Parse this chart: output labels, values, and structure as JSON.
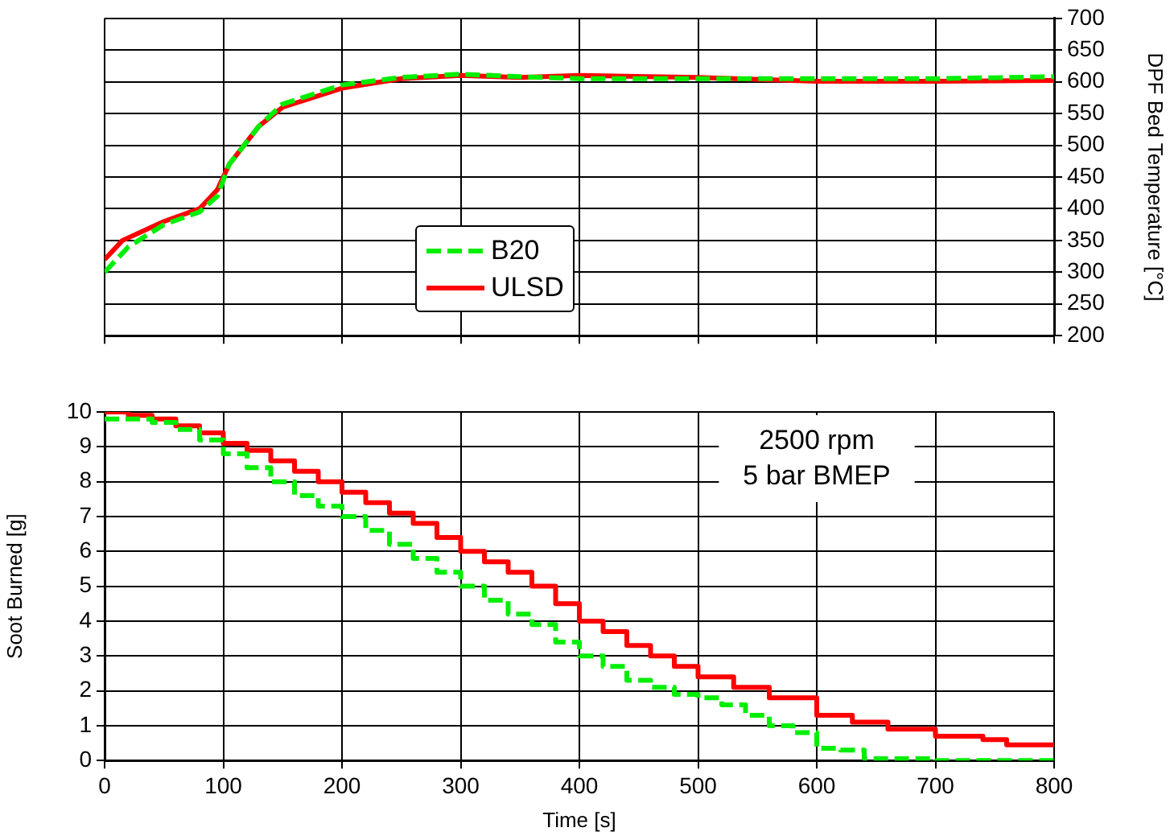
{
  "chart_data": [
    {
      "type": "line",
      "ylabel": "DPF Bed Temperature [°C]",
      "xlim": [
        0,
        800
      ],
      "xticks": [
        0,
        100,
        200,
        300,
        400,
        500,
        600,
        700,
        800
      ],
      "ylim": [
        200,
        700
      ],
      "yticks": [
        200,
        250,
        300,
        350,
        400,
        450,
        500,
        550,
        600,
        650,
        700
      ],
      "grid": true,
      "legend": "bottom",
      "tick_labels": "y",
      "marker": "none",
      "series": [
        {
          "name": "B20",
          "color": "#00ee00",
          "line_style": "dashed",
          "x": [
            0,
            20,
            50,
            80,
            95,
            105,
            130,
            150,
            200,
            250,
            300,
            350,
            400,
            500,
            600,
            700,
            800
          ],
          "values": [
            300,
            340,
            375,
            395,
            420,
            470,
            530,
            565,
            595,
            607,
            612,
            608,
            605,
            605,
            605,
            605,
            608
          ]
        },
        {
          "name": "ULSD",
          "color": "#ff0000",
          "line_style": "solid",
          "x": [
            0,
            15,
            50,
            80,
            95,
            105,
            130,
            150,
            200,
            250,
            300,
            350,
            400,
            500,
            600,
            700,
            800
          ],
          "values": [
            320,
            350,
            380,
            400,
            430,
            470,
            530,
            560,
            590,
            605,
            610,
            607,
            610,
            607,
            601,
            601,
            602
          ]
        }
      ]
    },
    {
      "type": "step",
      "xlabel": "Time [s]",
      "ylabel": "Soot Burned [g]",
      "xlim": [
        0,
        800
      ],
      "xticks": [
        0,
        100,
        200,
        300,
        400,
        500,
        600,
        700,
        800
      ],
      "ylim": [
        0,
        10
      ],
      "yticks": [
        0,
        1,
        2,
        3,
        4,
        5,
        6,
        7,
        8,
        9,
        10
      ],
      "grid": true,
      "marker": "none",
      "annotations": [
        "2500 rpm\n5 bar BMEP"
      ],
      "series": [
        {
          "color": "#00ee00",
          "line_style": "dashed",
          "x": [
            0,
            20,
            40,
            60,
            80,
            100,
            120,
            140,
            160,
            180,
            200,
            220,
            240,
            260,
            280,
            300,
            320,
            340,
            360,
            380,
            400,
            420,
            440,
            460,
            480,
            500,
            520,
            540,
            560,
            580,
            600,
            620,
            640,
            700,
            800
          ],
          "values": [
            9.8,
            9.8,
            9.7,
            9.5,
            9.2,
            8.8,
            8.4,
            8.0,
            7.6,
            7.3,
            7.0,
            6.6,
            6.2,
            5.8,
            5.4,
            5.0,
            4.6,
            4.2,
            3.9,
            3.4,
            3.0,
            2.7,
            2.3,
            2.1,
            1.9,
            1.8,
            1.6,
            1.3,
            1.0,
            0.8,
            0.35,
            0.3,
            0.05,
            0,
            0
          ]
        },
        {
          "color": "#ff0000",
          "line_style": "solid",
          "x": [
            0,
            20,
            40,
            60,
            80,
            100,
            120,
            140,
            160,
            180,
            200,
            220,
            240,
            260,
            280,
            300,
            320,
            340,
            360,
            380,
            400,
            420,
            440,
            460,
            480,
            500,
            530,
            560,
            600,
            630,
            660,
            700,
            740,
            760,
            800
          ],
          "values": [
            10,
            9.9,
            9.8,
            9.6,
            9.4,
            9.1,
            8.9,
            8.6,
            8.3,
            8.0,
            7.7,
            7.4,
            7.1,
            6.8,
            6.4,
            6.0,
            5.7,
            5.4,
            5.0,
            4.5,
            4.0,
            3.7,
            3.3,
            3.0,
            2.7,
            2.4,
            2.1,
            1.8,
            1.3,
            1.1,
            0.9,
            0.7,
            0.6,
            0.45,
            0.42
          ]
        }
      ]
    }
  ]
}
